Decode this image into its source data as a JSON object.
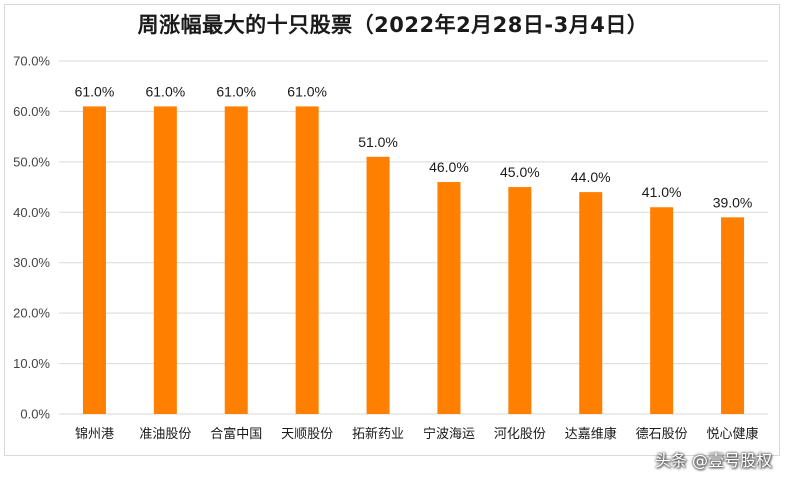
{
  "chart_data": {
    "type": "bar",
    "title": "周涨幅最大的十只股票（2022年2月28日-3月4日）",
    "categories": [
      "锦州港",
      "准油股份",
      "合富中国",
      "天顺股份",
      "拓新药业",
      "宁波海运",
      "河化股份",
      "达嘉维康",
      "德石股份",
      "悦心健康"
    ],
    "values": [
      61.0,
      61.0,
      61.0,
      61.0,
      51.0,
      46.0,
      45.0,
      44.0,
      41.0,
      39.0
    ],
    "data_labels": [
      "61.0%",
      "61.0%",
      "61.0%",
      "61.0%",
      "51.0%",
      "46.0%",
      "45.0%",
      "44.0%",
      "41.0%",
      "39.0%"
    ],
    "y_ticks": [
      0,
      10,
      20,
      30,
      40,
      50,
      60,
      70
    ],
    "y_tick_labels": [
      "0.0%",
      "10.0%",
      "20.0%",
      "30.0%",
      "40.0%",
      "50.0%",
      "60.0%",
      "70.0%"
    ],
    "ylim": [
      0,
      70
    ],
    "grid": true,
    "legend": "none",
    "bar_color": "#ff7f00",
    "grid_color": "#d9d9d9"
  },
  "watermark": "头条 @壹号股权"
}
